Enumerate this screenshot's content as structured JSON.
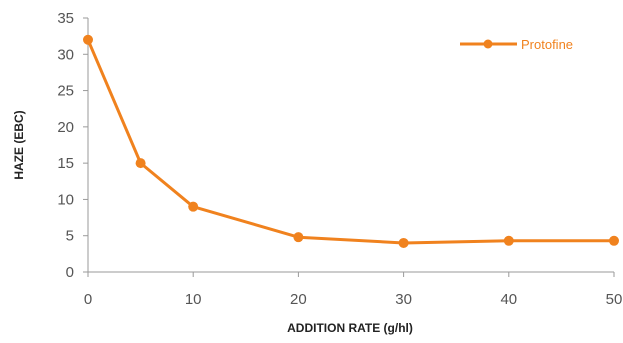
{
  "chart_data": {
    "type": "line",
    "title": "",
    "xlabel": "ADDITION RATE (g/hl)",
    "ylabel": "HAZE (EBC)",
    "xlim": [
      0,
      50
    ],
    "ylim": [
      0,
      35
    ],
    "x_ticks": [
      0,
      10,
      20,
      30,
      40,
      50
    ],
    "y_ticks": [
      0,
      5,
      10,
      15,
      20,
      25,
      30,
      35
    ],
    "grid": false,
    "legend_position": "top-right",
    "series": [
      {
        "name": "Protofine",
        "color": "#f0821e",
        "x": [
          0,
          5,
          10,
          20,
          30,
          40,
          50
        ],
        "y": [
          32,
          15,
          9,
          4.8,
          4,
          4.3,
          4.3
        ]
      }
    ]
  }
}
